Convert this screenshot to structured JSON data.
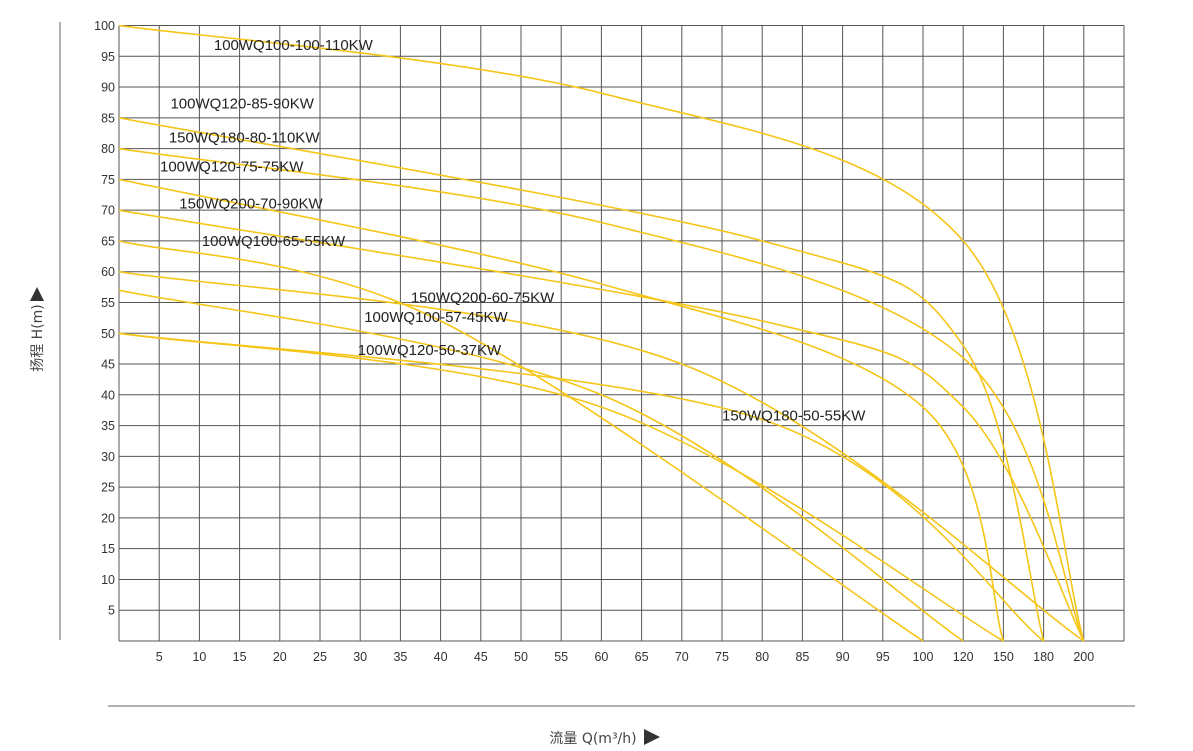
{
  "chart_data": {
    "type": "line",
    "title": "",
    "xlabel": "流量 Q(m³/h)",
    "ylabel": "扬程 H(m)",
    "x_ticks": [
      "5",
      "10",
      "15",
      "20",
      "25",
      "30",
      "35",
      "40",
      "45",
      "50",
      "55",
      "60",
      "65",
      "70",
      "75",
      "80",
      "85",
      "90",
      "95",
      "100",
      "120",
      "150",
      "180",
      "200"
    ],
    "y_ticks": [
      5,
      10,
      15,
      20,
      25,
      30,
      35,
      40,
      45,
      50,
      55,
      60,
      65,
      70,
      75,
      80,
      85,
      90,
      95,
      100
    ],
    "ylim": [
      0,
      100
    ],
    "grid": true,
    "line_color": "#F5C518",
    "grid_color": "#555555",
    "series": [
      {
        "name": "100WQ100-100-110KW",
        "x": [
          0,
          60,
          120,
          200
        ],
        "y": [
          100,
          89,
          65,
          0
        ]
      },
      {
        "name": "100WQ120-85-90KW",
        "x": [
          0,
          80,
          120,
          180
        ],
        "y": [
          85,
          65,
          48,
          0
        ]
      },
      {
        "name": "150WQ180-80-110KW",
        "x": [
          0,
          60,
          120,
          200
        ],
        "y": [
          80,
          68,
          46,
          0
        ]
      },
      {
        "name": "100WQ120-75-75KW",
        "x": [
          0,
          60,
          100,
          150
        ],
        "y": [
          75,
          58,
          38,
          0
        ]
      },
      {
        "name": "150WQ200-70-90KW",
        "x": [
          0,
          80,
          120,
          200
        ],
        "y": [
          70,
          52,
          38,
          0
        ]
      },
      {
        "name": "100WQ100-65-55KW",
        "x": [
          0,
          40,
          100
        ],
        "y": [
          65,
          52,
          0
        ]
      },
      {
        "name": "150WQ200-60-75KW",
        "x": [
          0,
          70,
          200
        ],
        "y": [
          60,
          45,
          0
        ]
      },
      {
        "name": "100WQ100-57-45KW",
        "x": [
          0,
          60,
          120
        ],
        "y": [
          57,
          40,
          0
        ]
      },
      {
        "name": "100WQ120-50-37KW",
        "x": [
          0,
          60,
          150
        ],
        "y": [
          50,
          38,
          0
        ]
      },
      {
        "name": "150WQ180-50-55KW",
        "x": [
          0,
          80,
          180
        ],
        "y": [
          50,
          36,
          0
        ]
      }
    ],
    "annotations": [
      {
        "text": "100WQ100-100-110KW",
        "x": 11.8,
        "y": 96.0
      },
      {
        "text": "100WQ120-85-90KW",
        "x": 6.4,
        "y": 86.5
      },
      {
        "text": "150WQ180-80-110KW",
        "x": 6.2,
        "y": 81.0
      },
      {
        "text": "100WQ120-75-75KW",
        "x": 5.1,
        "y": 76.3
      },
      {
        "text": "150WQ200-70-90KW",
        "x": 7.5,
        "y": 70.3
      },
      {
        "text": "100WQ100-65-55KW",
        "x": 10.3,
        "y": 64.2
      },
      {
        "text": "150WQ200-60-75KW",
        "x": 36.3,
        "y": 55.0
      },
      {
        "text": "100WQ100-57-45KW",
        "x": 30.5,
        "y": 51.8
      },
      {
        "text": "100WQ120-50-37KW",
        "x": 29.7,
        "y": 46.5
      },
      {
        "text": "150WQ180-50-55KW",
        "x": 75.0,
        "y": 35.8
      }
    ]
  }
}
